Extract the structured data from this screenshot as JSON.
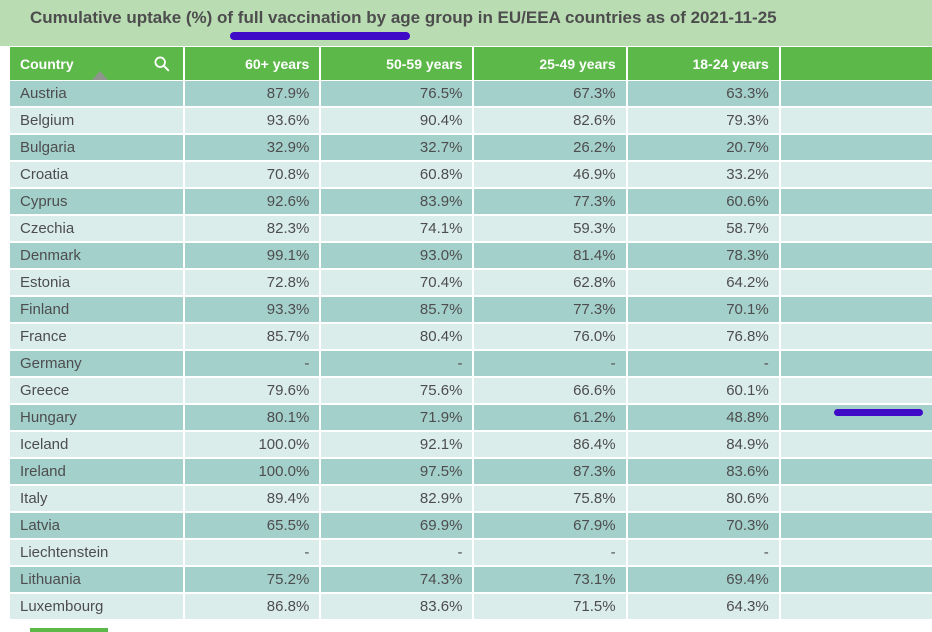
{
  "title": "Cumulative uptake (%) of full vaccination by age group in EU/EEA countries as of 2021-11-25",
  "chart_data": {
    "type": "table",
    "title": "Cumulative uptake (%) of full vaccination by age group in EU/EEA countries as of 2021-11-25",
    "columns": [
      "Country",
      "60+ years",
      "50-59 years",
      "25-49 years",
      "18-24 years"
    ],
    "rows": [
      {
        "country": "Austria",
        "values": [
          "87.9%",
          "76.5%",
          "67.3%",
          "63.3%"
        ]
      },
      {
        "country": "Belgium",
        "values": [
          "93.6%",
          "90.4%",
          "82.6%",
          "79.3%"
        ]
      },
      {
        "country": "Bulgaria",
        "values": [
          "32.9%",
          "32.7%",
          "26.2%",
          "20.7%"
        ]
      },
      {
        "country": "Croatia",
        "values": [
          "70.8%",
          "60.8%",
          "46.9%",
          "33.2%"
        ]
      },
      {
        "country": "Cyprus",
        "values": [
          "92.6%",
          "83.9%",
          "77.3%",
          "60.6%"
        ]
      },
      {
        "country": "Czechia",
        "values": [
          "82.3%",
          "74.1%",
          "59.3%",
          "58.7%"
        ]
      },
      {
        "country": "Denmark",
        "values": [
          "99.1%",
          "93.0%",
          "81.4%",
          "78.3%"
        ]
      },
      {
        "country": "Estonia",
        "values": [
          "72.8%",
          "70.4%",
          "62.8%",
          "64.2%"
        ]
      },
      {
        "country": "Finland",
        "values": [
          "93.3%",
          "85.7%",
          "77.3%",
          "70.1%"
        ]
      },
      {
        "country": "France",
        "values": [
          "85.7%",
          "80.4%",
          "76.0%",
          "76.8%"
        ]
      },
      {
        "country": "Germany",
        "values": [
          "-",
          "-",
          "-",
          "-"
        ]
      },
      {
        "country": "Greece",
        "values": [
          "79.6%",
          "75.6%",
          "66.6%",
          "60.1%"
        ]
      },
      {
        "country": "Hungary",
        "values": [
          "80.1%",
          "71.9%",
          "61.2%",
          "48.8%"
        ]
      },
      {
        "country": "Iceland",
        "values": [
          "100.0%",
          "92.1%",
          "86.4%",
          "84.9%"
        ]
      },
      {
        "country": "Ireland",
        "values": [
          "100.0%",
          "97.5%",
          "87.3%",
          "83.6%"
        ]
      },
      {
        "country": "Italy",
        "values": [
          "89.4%",
          "82.9%",
          "75.8%",
          "80.6%"
        ]
      },
      {
        "country": "Latvia",
        "values": [
          "65.5%",
          "69.9%",
          "67.9%",
          "70.3%"
        ]
      },
      {
        "country": "Liechtenstein",
        "values": [
          "-",
          "-",
          "-",
          "-"
        ]
      },
      {
        "country": "Lithuania",
        "values": [
          "75.2%",
          "74.3%",
          "73.1%",
          "69.4%"
        ]
      },
      {
        "country": "Luxembourg",
        "values": [
          "86.8%",
          "83.6%",
          "71.5%",
          "64.3%"
        ]
      }
    ]
  },
  "header_controls": {
    "search_icon": "magnifier",
    "sort_indicator": "ascending-triangle"
  },
  "annotations": {
    "title_underline": "purple marker line under 'of full vaccination' in title",
    "greece_value_underline": "purple marker line under Greece 18-24 years value 60.1%"
  },
  "colors": {
    "title_band": "#b9dcb3",
    "header_green": "#5cb849",
    "header_text": "#ffffff",
    "row_dark": "#a4d0cc",
    "row_light": "#daedeb",
    "text_dark": "#4d4d4d",
    "annotation_purple": "#3f0bc6",
    "sort_arrow_gray": "#8f948f"
  }
}
